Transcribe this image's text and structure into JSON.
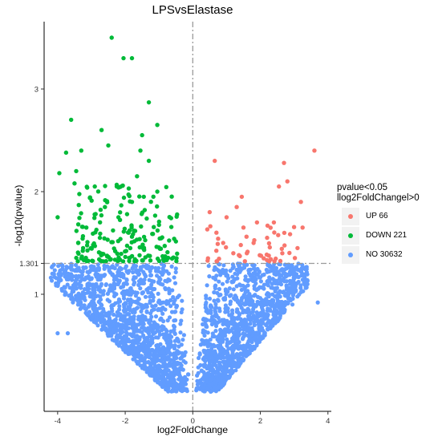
{
  "chart_data": {
    "type": "scatter",
    "title": "LPSvsElastase",
    "xlabel": "log2FoldChange",
    "ylabel": "-log10(pvalue)",
    "xlim": [
      -4.4,
      4.1
    ],
    "ylim": [
      0,
      3.5
    ],
    "x_ticks": [
      -4,
      -2,
      0,
      2,
      4
    ],
    "y_ticks": [
      1,
      1.301,
      2,
      3
    ],
    "y_tick_labels": [
      "1",
      "1.301",
      "2",
      "3"
    ],
    "threshold_lines": {
      "x": [
        0
      ],
      "y": [
        1.301
      ]
    },
    "grid": false,
    "legend": {
      "title_line1": "pvalue<0.05",
      "title_line2": "llog2FoldChangel>0",
      "position": "right"
    },
    "series": [
      {
        "name": "UP 66",
        "color": "#f8766d",
        "points": [
          [
            3.6,
            2.4
          ],
          [
            2.7,
            2.28
          ],
          [
            0.65,
            2.3
          ],
          [
            2.55,
            2.05
          ],
          [
            2.8,
            2.1
          ],
          [
            3.2,
            1.9
          ],
          [
            3.1,
            1.45
          ],
          [
            2.4,
            1.7
          ],
          [
            1.45,
            1.95
          ],
          [
            1.0,
            1.75
          ],
          [
            1.5,
            1.65
          ],
          [
            3.25,
            1.65
          ],
          [
            0.5,
            1.8
          ],
          [
            2.2,
            1.55
          ],
          [
            1.8,
            1.5
          ],
          [
            0.9,
            1.5
          ],
          [
            1.2,
            1.4
          ],
          [
            2.65,
            1.4
          ],
          [
            0.45,
            1.35
          ],
          [
            1.3,
            1.85
          ],
          [
            1.9,
            1.7
          ],
          [
            2.1,
            1.35
          ],
          [
            0.7,
            1.6
          ],
          [
            1.6,
            1.4
          ]
        ]
      },
      {
        "name": "DOWN 221",
        "color": "#00ba38",
        "points": [
          [
            -2.4,
            3.5
          ],
          [
            -2.05,
            3.3
          ],
          [
            -1.8,
            3.3
          ],
          [
            -1.3,
            2.87
          ],
          [
            -1.05,
            2.65
          ],
          [
            -3.6,
            2.7
          ],
          [
            -2.7,
            2.6
          ],
          [
            -1.5,
            2.55
          ],
          [
            -3.3,
            2.4
          ],
          [
            -3.75,
            2.38
          ],
          [
            -3.95,
            2.18
          ],
          [
            -4.0,
            1.75
          ],
          [
            -3.45,
            2.2
          ],
          [
            -1.3,
            2.3
          ],
          [
            -1.55,
            2.4
          ],
          [
            -2.9,
            2.05
          ],
          [
            -2.25,
            2.05
          ],
          [
            -1.65,
            2.15
          ],
          [
            -1.05,
            2.0
          ],
          [
            -3.5,
            2.08
          ],
          [
            -2.5,
            2.45
          ],
          [
            -1.45,
            1.95
          ],
          [
            -1.8,
            1.9
          ],
          [
            -2.6,
            1.85
          ],
          [
            -3.15,
            1.65
          ],
          [
            -2.75,
            1.55
          ],
          [
            -2.95,
            1.48
          ],
          [
            -3.3,
            1.35
          ],
          [
            -2.2,
            1.75
          ],
          [
            -1.9,
            1.6
          ]
        ]
      },
      {
        "name": "NO 30632",
        "color": "#619cff",
        "points": [
          [
            3.7,
            0.92
          ],
          [
            -4.0,
            0.62
          ],
          [
            -3.7,
            0.62
          ],
          [
            3.2,
            1.02
          ],
          [
            -3.2,
            1.05
          ],
          [
            2.95,
            0.9
          ]
        ]
      }
    ]
  }
}
